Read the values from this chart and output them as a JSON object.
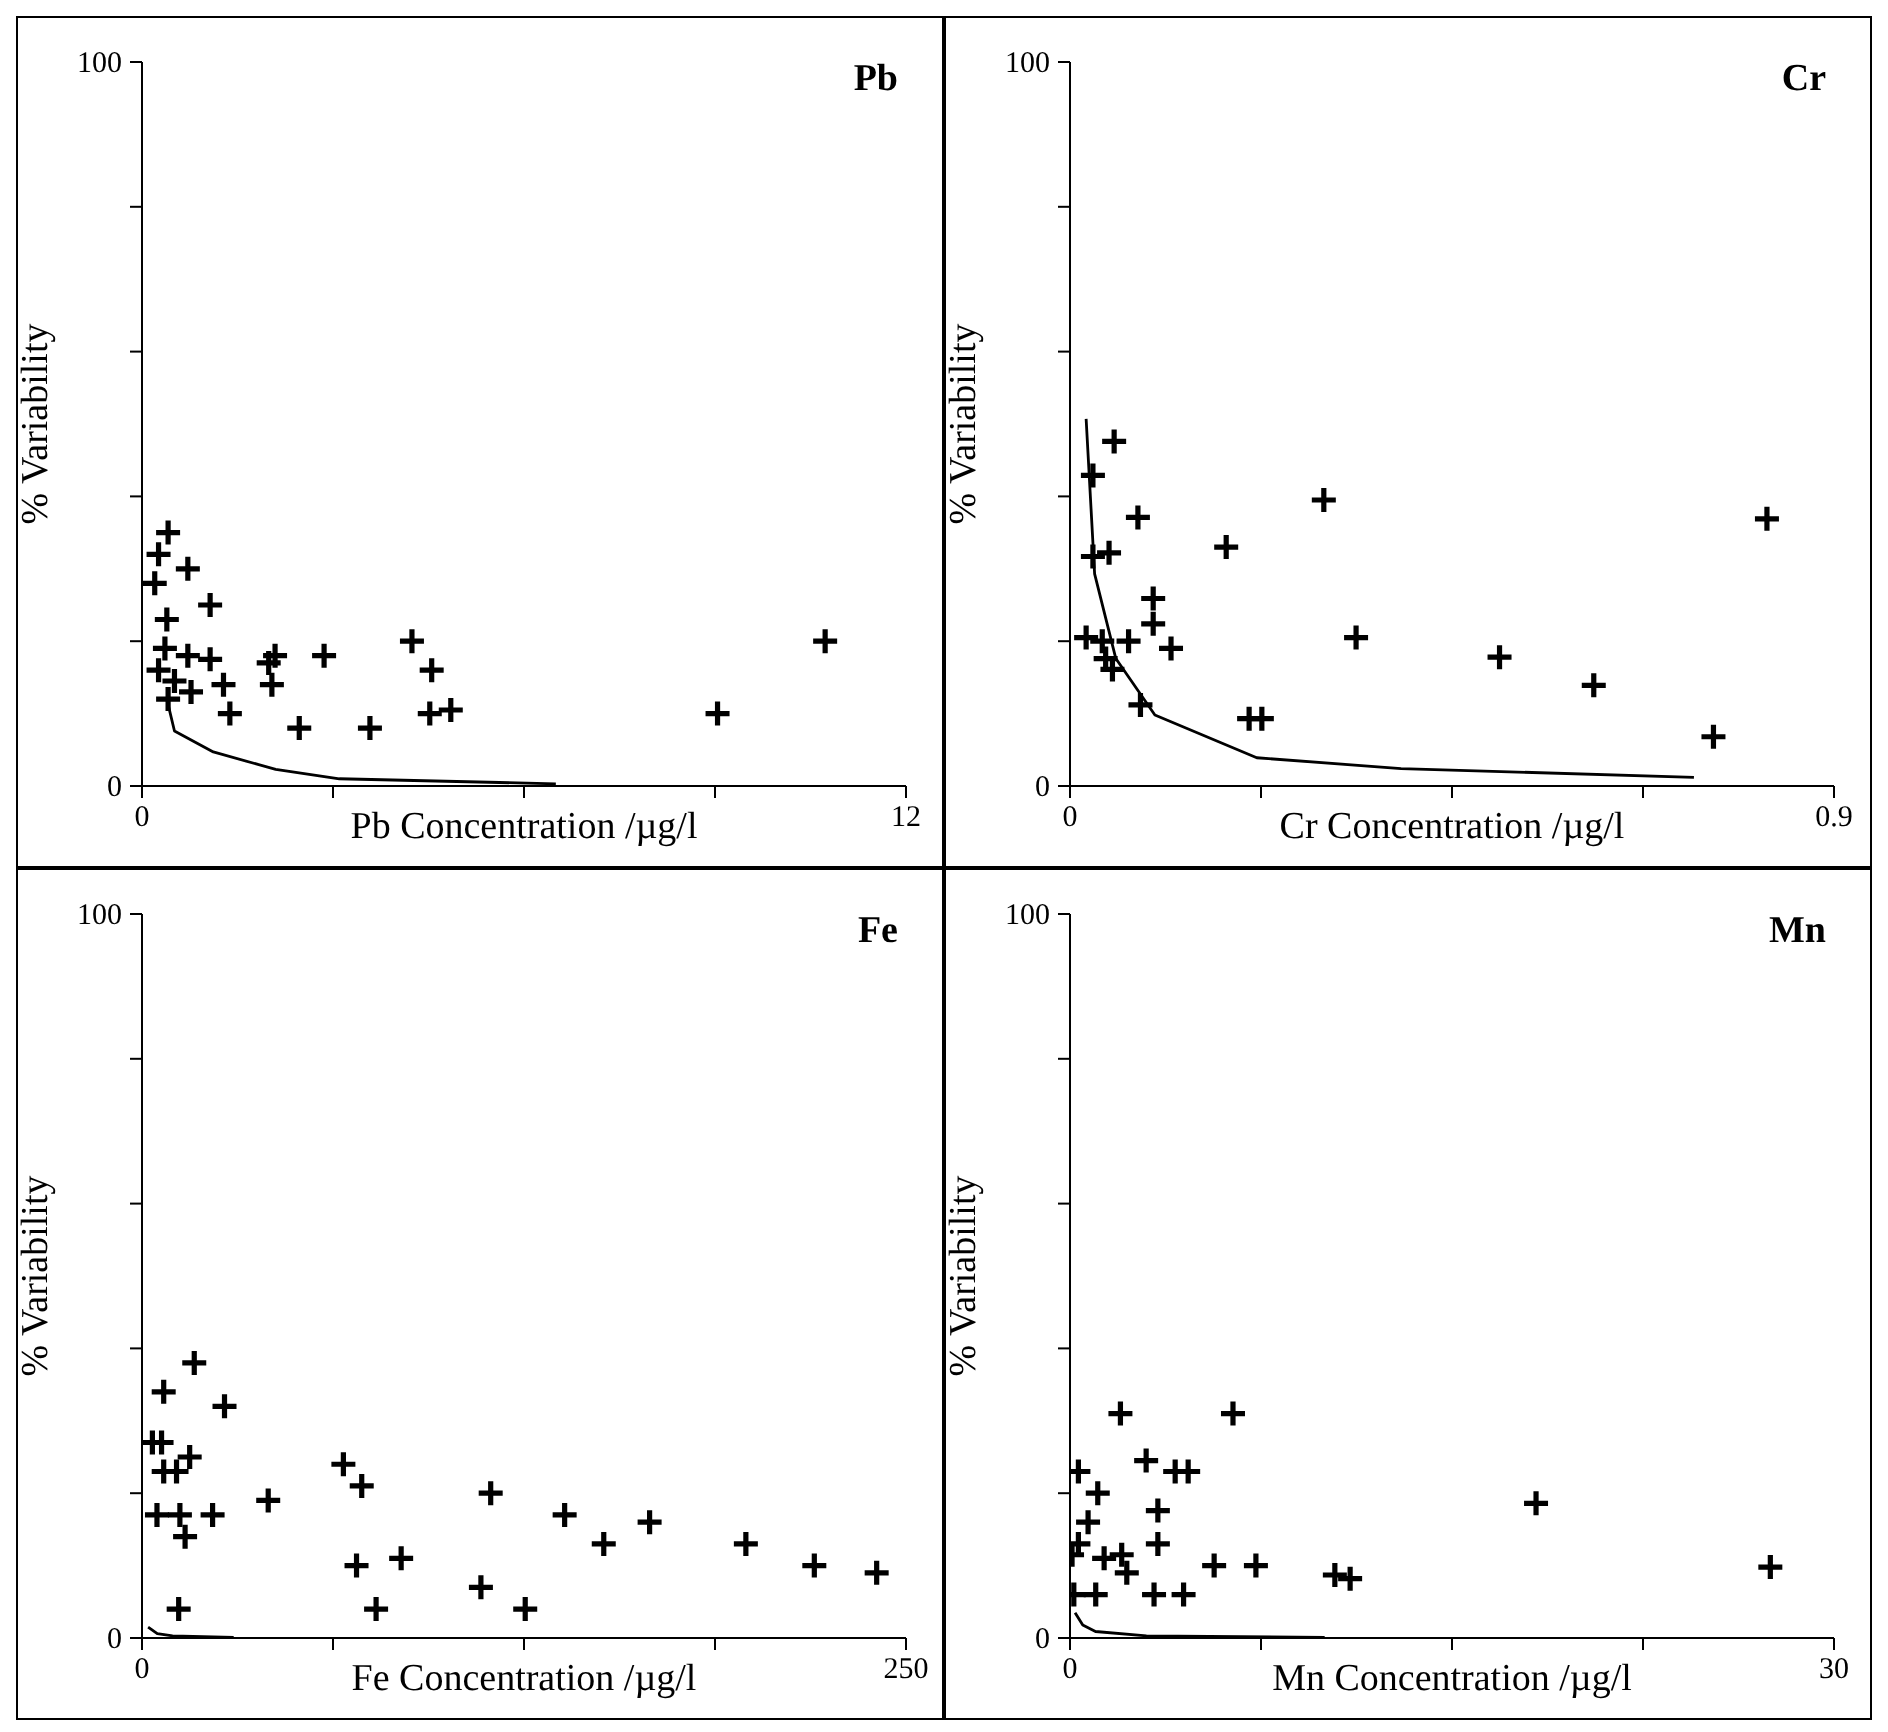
{
  "chart_data": [
    {
      "type": "scatter",
      "title": "Pb",
      "xlabel": "Pb Concentration /µg/l",
      "ylabel": "% Variability",
      "xlim": [
        0,
        12
      ],
      "xticks": [
        {
          "value": 0,
          "label": "0"
        },
        {
          "value": 3,
          "label": null
        },
        {
          "value": 6,
          "label": null
        },
        {
          "value": 9,
          "label": null
        },
        {
          "value": 12,
          "label": "12"
        }
      ],
      "ylim": [
        0,
        100
      ],
      "yticks": [
        {
          "value": 0,
          "label": "0"
        },
        {
          "value": 20,
          "label": null
        },
        {
          "value": 40,
          "label": null
        },
        {
          "value": 60,
          "label": null
        },
        {
          "value": 80,
          "label": null
        },
        {
          "value": 100,
          "label": "100"
        }
      ],
      "series": [
        {
          "color": "#000000",
          "marker": "cross",
          "x": [
            0.41,
            0.26,
            0.72,
            0.2,
            1.07,
            0.39,
            0.36,
            0.72,
            1.07,
            0.26,
            0.51,
            0.77,
            1.28,
            0.41,
            1.38,
            1.99,
            2.09,
            2.04,
            2.86,
            2.47,
            3.58,
            4.24,
            4.55,
            4.52,
            4.85,
            9.04,
            10.73
          ],
          "values": [
            35,
            32,
            30,
            28,
            25,
            23,
            19,
            18,
            17.5,
            16,
            14.5,
            13,
            14,
            12,
            10,
            17,
            18,
            14,
            18,
            8,
            8,
            20,
            16,
            10,
            10.5,
            10,
            20
          ]
        },
        {
          "type": "line",
          "color": "#000000",
          "marker": "none",
          "x": [
            0.39,
            0.51,
            1.12,
            2.1,
            3.1,
            6.5
          ],
          "values": [
            12,
            7.6,
            4.7,
            2.3,
            1,
            0.3
          ]
        }
      ]
    },
    {
      "type": "scatter",
      "title": "Cr",
      "xlabel": "Cr Concentration /µg/l",
      "ylabel": "% Variability",
      "xlim": [
        0,
        0.9
      ],
      "xticks": [
        {
          "value": 0,
          "label": "0"
        },
        {
          "value": 0.225,
          "label": null
        },
        {
          "value": 0.45,
          "label": null
        },
        {
          "value": 0.675,
          "label": null
        },
        {
          "value": 0.9,
          "label": "0.9"
        }
      ],
      "ylim": [
        0,
        100
      ],
      "yticks": [
        {
          "value": 0,
          "label": "0"
        },
        {
          "value": 20,
          "label": null
        },
        {
          "value": 40,
          "label": null
        },
        {
          "value": 60,
          "label": null
        },
        {
          "value": 80,
          "label": null
        },
        {
          "value": 100,
          "label": "100"
        }
      ],
      "series": [
        {
          "color": "#000000",
          "marker": "cross",
          "x": [
            0.052,
            0.027,
            0.08,
            0.027,
            0.046,
            0.184,
            0.299,
            0.821,
            0.098,
            0.098,
            0.019,
            0.038,
            0.069,
            0.119,
            0.042,
            0.05,
            0.337,
            0.506,
            0.617,
            0.083,
            0.211,
            0.226,
            0.758
          ],
          "values": [
            47.6,
            42.9,
            37.1,
            31.7,
            32.2,
            33,
            39.5,
            36.9,
            25.9,
            22.4,
            20.5,
            20,
            20,
            19,
            17.6,
            16.1,
            20.5,
            17.8,
            13.9,
            11.2,
            9.3,
            9.3,
            6.8
          ]
        },
        {
          "type": "line",
          "color": "#000000",
          "marker": "none",
          "x": [
            0.019,
            0.029,
            0.054,
            0.1,
            0.22,
            0.39,
            0.735
          ],
          "values": [
            50.7,
            29.3,
            17.6,
            9.8,
            3.9,
            2.4,
            1.2
          ]
        }
      ]
    },
    {
      "type": "scatter",
      "title": "Fe",
      "xlabel": "Fe Concentration /µg/l",
      "ylabel": "% Variability",
      "xlim": [
        0,
        250
      ],
      "xticks": [
        {
          "value": 0,
          "label": "0"
        },
        {
          "value": 62.5,
          "label": null
        },
        {
          "value": 125,
          "label": null
        },
        {
          "value": 187.5,
          "label": null
        },
        {
          "value": 250,
          "label": "250"
        }
      ],
      "ylim": [
        0,
        100
      ],
      "yticks": [
        {
          "value": 0,
          "label": "0"
        },
        {
          "value": 20,
          "label": null
        },
        {
          "value": 40,
          "label": null
        },
        {
          "value": 60,
          "label": null
        },
        {
          "value": 80,
          "label": null
        },
        {
          "value": 100,
          "label": "100"
        }
      ],
      "series": [
        {
          "color": "#000000",
          "marker": "cross",
          "x": [
            17.1,
            7.1,
            27,
            3.4,
            6.4,
            15.6,
            7.1,
            11.3,
            65.9,
            71.9,
            4.9,
            12.4,
            23.1,
            14.1,
            41.3,
            114.1,
            70.2,
            84.8,
            76.6,
            12,
            110.9,
            125.4,
            138.3,
            151.1,
            166.1,
            197.6,
            220,
            240.4
          ],
          "values": [
            38,
            34,
            32,
            27,
            27,
            25,
            23,
            23,
            24,
            21,
            17,
            17,
            17,
            14,
            19,
            20,
            10,
            11,
            4,
            4,
            7,
            4,
            17,
            13,
            16,
            13,
            10,
            9
          ]
        },
        {
          "type": "line",
          "color": "#000000",
          "marker": "none",
          "x": [
            2,
            5,
            10,
            30
          ],
          "values": [
            1.5,
            0.6,
            0.3,
            0.1
          ]
        }
      ]
    },
    {
      "type": "scatter",
      "title": "Mn",
      "xlabel": "Mn Concentration  /µg/l",
      "ylabel": "% Variability",
      "xlim": [
        0,
        30
      ],
      "xticks": [
        {
          "value": 0,
          "label": "0"
        },
        {
          "value": 7.5,
          "label": null
        },
        {
          "value": 15,
          "label": null
        },
        {
          "value": 22.5,
          "label": null
        },
        {
          "value": 30,
          "label": "30"
        }
      ],
      "ylim": [
        0,
        100
      ],
      "yticks": [
        {
          "value": 0,
          "label": "0"
        },
        {
          "value": 20,
          "label": null
        },
        {
          "value": 40,
          "label": null
        },
        {
          "value": 60,
          "label": null
        },
        {
          "value": 80,
          "label": null
        },
        {
          "value": 100,
          "label": "100"
        }
      ],
      "series": [
        {
          "color": "#000000",
          "marker": "cross",
          "x": [
            1.98,
            6.4,
            0.33,
            2.99,
            4.13,
            4.64,
            1.09,
            3.45,
            0.71,
            18.3,
            0.33,
            3.45,
            0.08,
            1.34,
            2.03,
            2.23,
            5.66,
            7.3,
            10.4,
            11,
            27.5,
            0.15,
            1.01,
            3.3,
            4.46
          ],
          "values": [
            31,
            31,
            23,
            24.5,
            23,
            23,
            20,
            17.6,
            16,
            18.6,
            13,
            13,
            11.5,
            11,
            11.5,
            9,
            10,
            10,
            8.7,
            8.2,
            9.8,
            6,
            6,
            6,
            6
          ]
        },
        {
          "type": "line",
          "color": "#000000",
          "marker": "none",
          "x": [
            0.2,
            0.5,
            1,
            3,
            10
          ],
          "values": [
            3.5,
            1.8,
            0.9,
            0.3,
            0.1
          ]
        }
      ]
    }
  ]
}
